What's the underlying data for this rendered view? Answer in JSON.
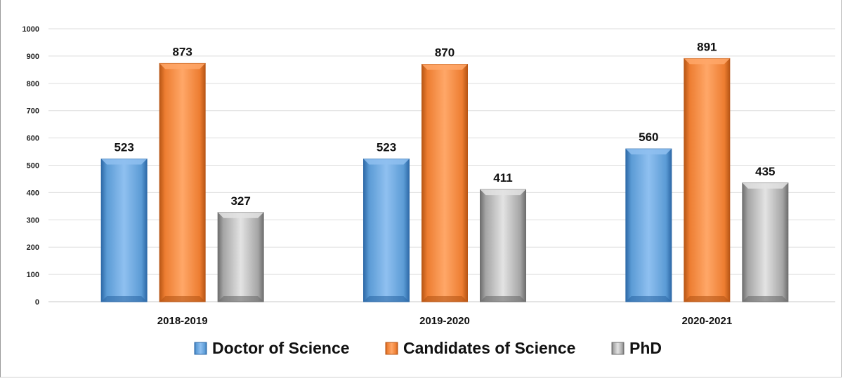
{
  "chart_data": {
    "type": "bar",
    "title": "",
    "xlabel": "",
    "ylabel": "",
    "categories": [
      "2018-2019",
      "2019-2020",
      "2020-2021"
    ],
    "ylim": [
      0,
      1000
    ],
    "yticks": [
      0,
      100,
      200,
      300,
      400,
      500,
      600,
      700,
      800,
      900,
      1000
    ],
    "grid": true,
    "legend_position": "bottom",
    "series": [
      {
        "name": "Doctor of Science",
        "values": [
          523,
          523,
          560
        ],
        "color": "#5b9bd5",
        "dark": "#2e6aa8",
        "light": "#8fc0f0"
      },
      {
        "name": "Candidates of Science",
        "values": [
          873,
          870,
          891
        ],
        "color": "#ed7d31",
        "dark": "#b85615",
        "light": "#ffa768"
      },
      {
        "name": "PhD",
        "values": [
          327,
          411,
          435
        ],
        "color": "#a5a5a5",
        "dark": "#6e6e6e",
        "light": "#e3e3e3"
      }
    ]
  }
}
